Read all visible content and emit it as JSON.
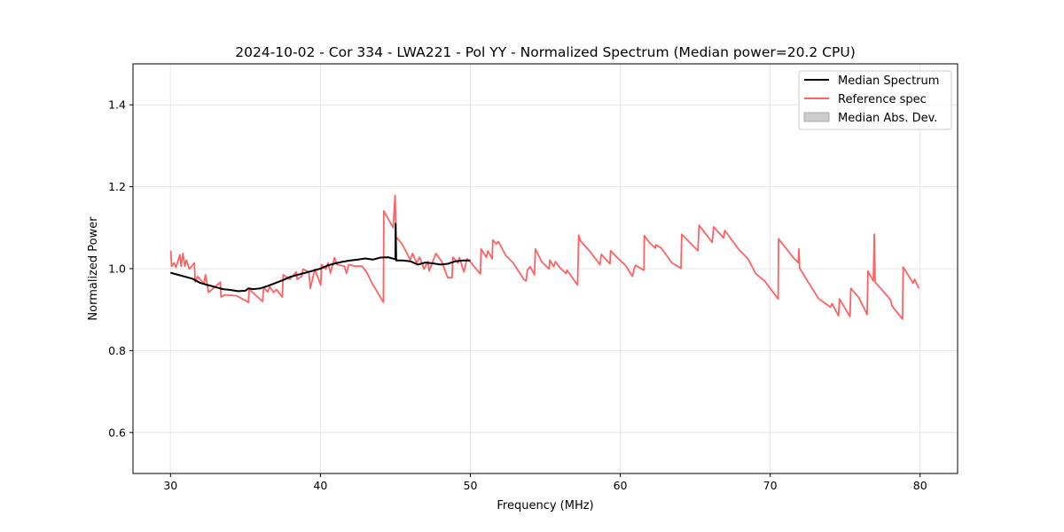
{
  "chart_data": {
    "type": "line",
    "title": "2024-10-02 - Cor 334 - LWA221 - Pol YY - Normalized Spectrum (Median power=20.2 CPU)",
    "xlabel": "Frequency (MHz)",
    "ylabel": "Normalized Power",
    "xlim": [
      27.5,
      82.5
    ],
    "ylim": [
      0.5,
      1.5
    ],
    "xticks": [
      30,
      40,
      50,
      60,
      70,
      80
    ],
    "yticks": [
      0.6,
      0.8,
      1.0,
      1.2,
      1.4
    ],
    "ytick_labels": [
      "0.6",
      "0.8",
      "1.0",
      "1.2",
      "1.4"
    ],
    "grid": true,
    "legend_position": "top-right",
    "colors": {
      "median": "#000000",
      "reference": "#ff6262",
      "mad": "#cccccc"
    },
    "series": [
      {
        "name": "Median Spectrum",
        "x": [
          30,
          30.5,
          31,
          31.5,
          32,
          32.5,
          33,
          33.5,
          34,
          34.5,
          35,
          35.2,
          35.5,
          36,
          36.5,
          37,
          37.5,
          38,
          38.5,
          39,
          39.5,
          40,
          40.5,
          41,
          41.5,
          42,
          42.5,
          43,
          43.5,
          44,
          44.5,
          45,
          45.02,
          45.06,
          45.5,
          46,
          46.5,
          47,
          47.5,
          48,
          48.5,
          49,
          49.5,
          50
        ],
        "y": [
          0.99,
          0.985,
          0.98,
          0.975,
          0.965,
          0.96,
          0.955,
          0.95,
          0.948,
          0.945,
          0.946,
          0.952,
          0.95,
          0.952,
          0.958,
          0.965,
          0.972,
          0.98,
          0.985,
          0.99,
          0.995,
          1.0,
          1.008,
          1.013,
          1.017,
          1.02,
          1.022,
          1.025,
          1.022,
          1.027,
          1.028,
          1.023,
          1.11,
          1.02,
          1.02,
          1.018,
          1.01,
          1.015,
          1.013,
          1.01,
          1.012,
          1.018,
          1.02,
          1.02
        ]
      },
      {
        "name": "Reference spec",
        "x": [
          30.02,
          30.08,
          30.24,
          30.37,
          30.63,
          30.71,
          30.83,
          30.96,
          31.06,
          31.26,
          31.59,
          31.65,
          31.81,
          32.24,
          32.34,
          32.54,
          33.33,
          33.37,
          33.62,
          34.41,
          35.2,
          35.24,
          36.14,
          36.22,
          36.48,
          36.62,
          36.87,
          37.07,
          37.46,
          37.52,
          37.96,
          38.39,
          38.45,
          38.74,
          38.84,
          39.23,
          39.33,
          39.63,
          40.02,
          40.08,
          40.36,
          40.51,
          40.67,
          40.94,
          41.1,
          41.6,
          41.74,
          41.89,
          42.29,
          42.78,
          43.07,
          43.47,
          44.2,
          44.23,
          44.85,
          44.98,
          45.04,
          45.43,
          45.83,
          45.99,
          46.14,
          46.42,
          46.62,
          46.91,
          47.17,
          47.25,
          47.7,
          48.1,
          48.49,
          48.78,
          48.84,
          49.18,
          49.27,
          49.57,
          49.77,
          50.06,
          50.67,
          50.72,
          51.07,
          51.17,
          51.46,
          51.5,
          51.73,
          51.87,
          52.37,
          52.86,
          53.56,
          53.72,
          53.8,
          53.99,
          54.28,
          54.34,
          54.76,
          55.26,
          55.3,
          55.56,
          55.68,
          55.96,
          56.39,
          56.45,
          57.15,
          57.23,
          57.35,
          57.95,
          58.65,
          58.73,
          59.31,
          59.35,
          59.95,
          60.31,
          60.82,
          60.9,
          61.02,
          61.58,
          61.6,
          61.94,
          62.34,
          62.38,
          62.74,
          63.45,
          64.05,
          64.1,
          65.18,
          65.26,
          66.13,
          66.23,
          66.89,
          66.97,
          67.92,
          68.52,
          69.03,
          69.63,
          70.53,
          70.56,
          71.52,
          71.88,
          71.92,
          71.96,
          73.22,
          74.02,
          74.12,
          74.56,
          74.62,
          75.32,
          75.38,
          75.92,
          76.46,
          76.52,
          76.88,
          76.94,
          77.0,
          78.03,
          78.12,
          78.83,
          78.87,
          79.53,
          79.63,
          79.92
        ],
        "y": [
          1.044,
          1.006,
          1.014,
          1.003,
          1.034,
          1.006,
          1.037,
          1.006,
          1.021,
          0.999,
          1.014,
          0.967,
          0.981,
          0.963,
          0.985,
          0.942,
          0.967,
          0.931,
          0.936,
          0.934,
          0.918,
          0.95,
          0.92,
          0.955,
          0.943,
          0.956,
          0.942,
          0.949,
          0.931,
          0.985,
          0.974,
          0.992,
          0.974,
          0.981,
          0.999,
          0.992,
          0.952,
          0.999,
          0.96,
          1.01,
          0.999,
          1.014,
          0.989,
          1.027,
          1.01,
          1.006,
          0.989,
          1.01,
          1.006,
          1.006,
          0.992,
          0.963,
          0.918,
          1.141,
          1.1,
          1.179,
          1.078,
          1.061,
          1.034,
          1.021,
          1.037,
          1.014,
          1.028,
          0.999,
          1.017,
          0.994,
          1.037,
          1.017,
          0.978,
          0.978,
          1.028,
          1.014,
          1.027,
          0.992,
          1.024,
          1.014,
          0.987,
          1.048,
          1.028,
          1.043,
          1.024,
          1.07,
          1.06,
          1.066,
          1.032,
          1.014,
          0.974,
          0.97,
          0.996,
          1.005,
          0.985,
          1.048,
          1.017,
          0.999,
          1.021,
          1.005,
          1.017,
          1.003,
          0.988,
          0.996,
          0.96,
          1.082,
          1.068,
          1.043,
          1.01,
          1.035,
          1.012,
          1.044,
          1.021,
          1.01,
          0.981,
          0.998,
          1.008,
          0.996,
          1.081,
          1.064,
          1.05,
          1.058,
          1.05,
          1.014,
          1.001,
          1.084,
          1.044,
          1.106,
          1.064,
          1.102,
          1.075,
          1.093,
          1.046,
          1.024,
          0.988,
          0.97,
          0.926,
          1.073,
          1.028,
          1.014,
          1.048,
          1.001,
          0.927,
          0.906,
          0.915,
          0.885,
          0.926,
          0.883,
          0.952,
          0.929,
          0.888,
          0.994,
          0.97,
          1.084,
          0.967,
          0.924,
          0.909,
          0.877,
          1.004,
          0.965,
          0.974,
          0.952
        ]
      }
    ],
    "legend": [
      "Median Spectrum",
      "Reference spec",
      "Median Abs. Dev."
    ]
  }
}
